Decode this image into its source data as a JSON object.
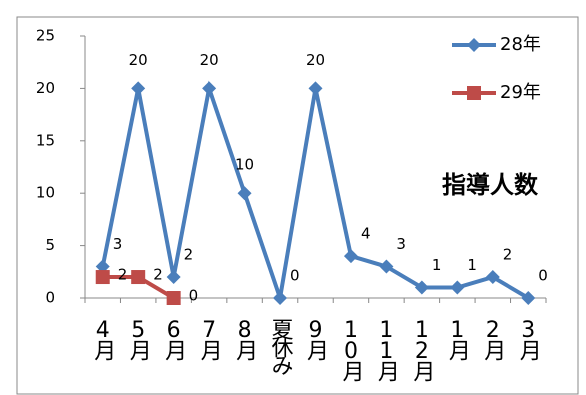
{
  "chart_data": {
    "type": "line",
    "title": "指導人数",
    "categories": [
      "4月",
      "5月",
      "6月",
      "7月",
      "8月",
      "夏休み",
      "9月",
      "10月",
      "11月",
      "12月",
      "1月",
      "2月",
      "3月"
    ],
    "series": [
      {
        "name": "28年",
        "color": "#4a7ebb",
        "values": [
          3,
          20,
          2,
          20,
          10,
          0,
          20,
          4,
          3,
          1,
          1,
          2,
          0
        ]
      },
      {
        "name": "29年",
        "color": "#be4b48",
        "values": [
          2,
          2,
          0,
          null,
          null,
          null,
          null,
          null,
          null,
          null,
          null,
          null,
          null
        ]
      }
    ],
    "ylim": [
      0,
      25
    ],
    "yticks": [
      0,
      5,
      10,
      15,
      20,
      25
    ]
  }
}
